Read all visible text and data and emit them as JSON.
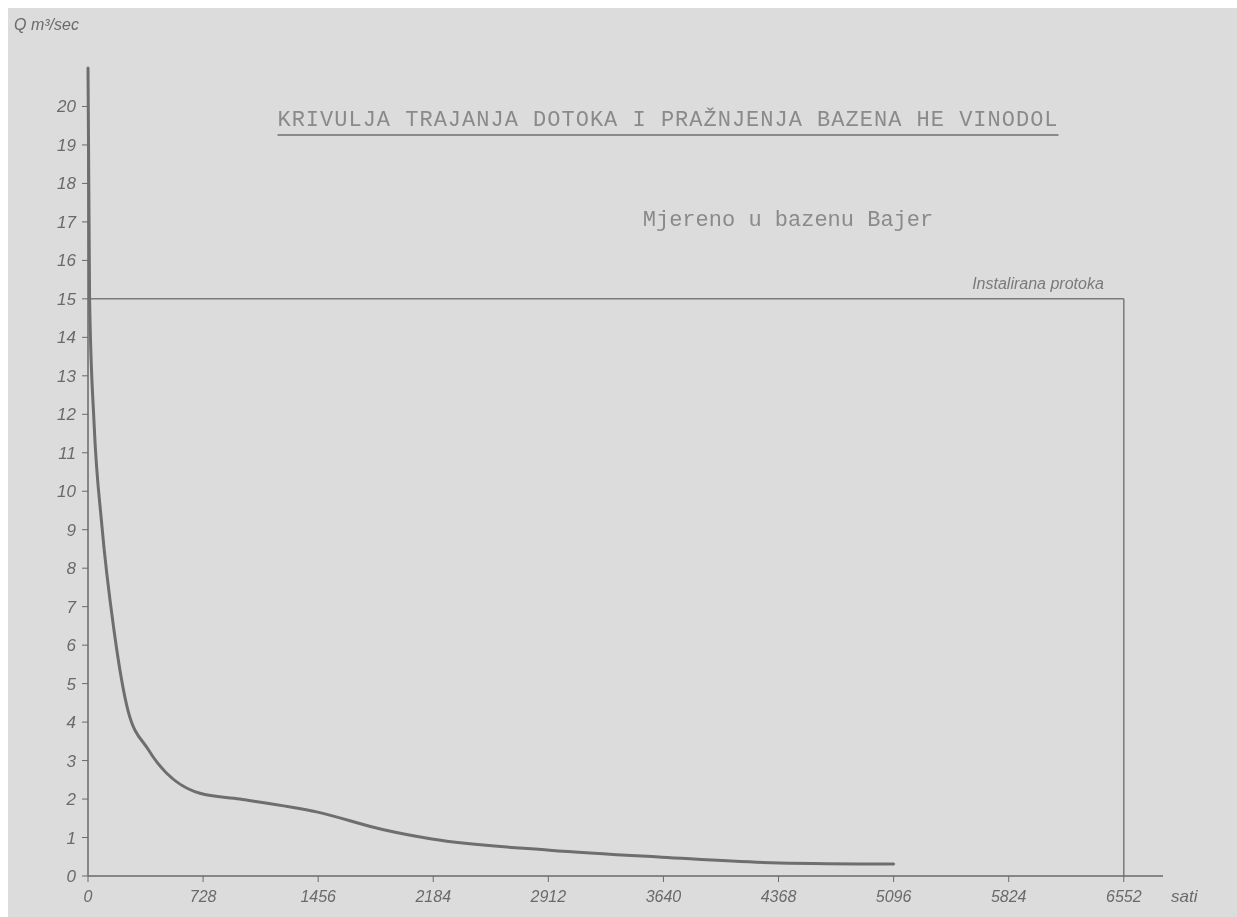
{
  "chart_data": {
    "type": "line",
    "title": "KRIVULJA TRAJANJA DOTOKA I PRAŽNJENJA BAZENA HE VINODOL",
    "subtitle": "Mjereno u bazenu Bajer",
    "xlabel": "sati",
    "ylabel": "Q m³/sec",
    "x": [
      0,
      10,
      38,
      88,
      164,
      253,
      379,
      708,
      960,
      1453,
      1870,
      2175,
      2920,
      3630,
      4370,
      5096
    ],
    "series": [
      {
        "color": "#6e6e6e",
        "values": [
          21,
          15,
          11.8,
          9.1,
          6.4,
          4.3,
          3.3,
          2.15,
          2.0,
          1.66,
          1.2,
          0.96,
          0.67,
          0.49,
          0.34,
          0.31
        ]
      }
    ],
    "xlim": [
      0,
      6800
    ],
    "xticks": [
      0,
      728,
      1456,
      2184,
      2912,
      {
        "value": 3640,
        "label": "3640"
      },
      {
        "value": 4368,
        "label": "4368"
      },
      5096,
      5824,
      6552
    ],
    "ylim": [
      0,
      21
    ],
    "yticks": [
      0,
      1,
      2,
      3,
      4,
      5,
      6,
      7,
      8,
      9,
      10,
      11,
      12,
      13,
      14,
      15,
      16,
      17,
      18,
      19,
      20
    ],
    "ref_lines": [
      {
        "axis": "y",
        "value": 15,
        "label": "Instalirana protoka",
        "color": "#7a7a7a"
      },
      {
        "axis": "x",
        "value": 6552,
        "color": "#7a7a7a"
      }
    ],
    "grid": false,
    "marker": "none",
    "line_style": "solid"
  }
}
